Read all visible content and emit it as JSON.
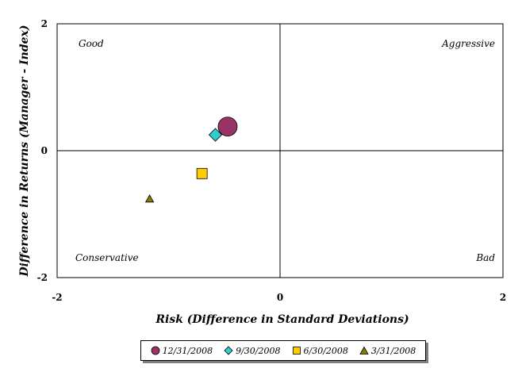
{
  "chart_data": {
    "type": "scatter",
    "xlabel": "Risk (Difference in Standard Deviations)",
    "ylabel": "Difference in Returns (Manager - Index)",
    "xlim": [
      -2,
      2
    ],
    "ylim": [
      -2,
      2
    ],
    "xticks": [
      "-2",
      "0",
      "2"
    ],
    "yticks": [
      "2",
      "0",
      "-2"
    ],
    "quadrant_labels": {
      "top_left": "Good",
      "top_right": "Aggressive",
      "bottom_left": "Conservative",
      "bottom_right": "Bad"
    },
    "series": [
      {
        "name": "12/31/2008",
        "marker": "circle",
        "color": "#993366",
        "x": -0.47,
        "y": 0.38
      },
      {
        "name": "9/30/2008",
        "marker": "diamond",
        "color": "#33CCCC",
        "x": -0.58,
        "y": 0.25
      },
      {
        "name": "6/30/2008",
        "marker": "square",
        "color": "#FFCC00",
        "x": -0.7,
        "y": -0.36
      },
      {
        "name": "3/31/2008",
        "marker": "triangle",
        "color": "#808000",
        "x": -1.17,
        "y": -0.76
      }
    ],
    "legend_position": "bottom"
  }
}
